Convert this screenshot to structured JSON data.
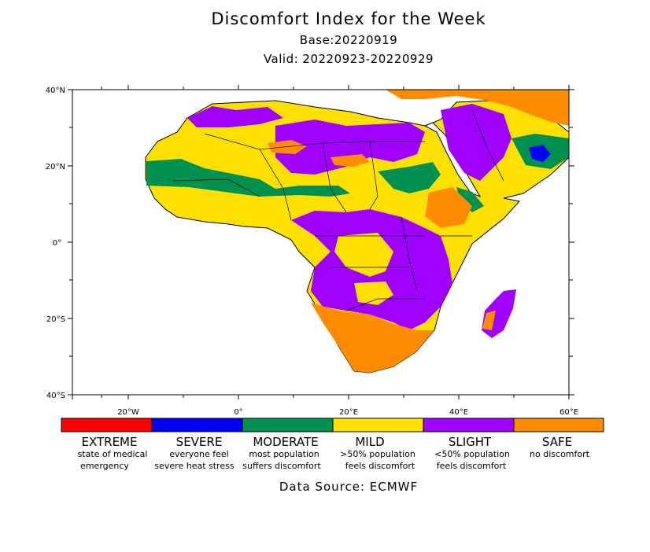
{
  "header": {
    "title": "Discomfort Index for the Week",
    "base": "Base:20220919",
    "valid": "Valid: 20220923-20220929"
  },
  "axes": {
    "lat_ticks": [
      "40°N",
      "20°N",
      "0°",
      "20°S",
      "40°S"
    ],
    "lon_ticks": [
      "20°W",
      "0°",
      "20°E",
      "40°E",
      "60°E"
    ]
  },
  "legend": [
    {
      "name": "EXTREME",
      "color": "#ff0000",
      "desc1": "state of medical",
      "desc2": "emergency"
    },
    {
      "name": "SEVERE",
      "color": "#0000ff",
      "desc1": "everyone feel",
      "desc2": "severe heat stress"
    },
    {
      "name": "MODERATE",
      "color": "#009150",
      "desc1": "most population",
      "desc2": "suffers discomfort"
    },
    {
      "name": "MILD",
      "color": "#ffe100",
      "desc1": ">50% population",
      "desc2": "feels discomfort"
    },
    {
      "name": "SLIGHT",
      "color": "#a000ff",
      "desc1": "<50% population",
      "desc2": "feels discomfort"
    },
    {
      "name": "SAFE",
      "color": "#ff8c00",
      "desc1": "no discomfort",
      "desc2": ""
    }
  ],
  "source": "Data Source: ECMWF"
}
